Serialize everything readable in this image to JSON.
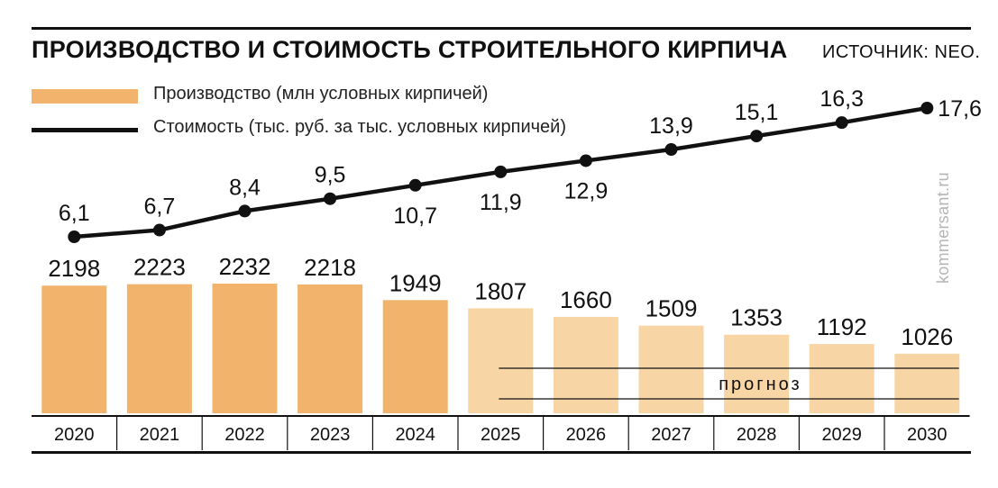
{
  "header": {
    "title": "ПРОИЗВОДСТВО И СТОИМОСТЬ СТРОИТЕЛЬНОГО КИРПИЧА",
    "source": "ИСТОЧНИК: NEO."
  },
  "watermark": "kommersant.ru",
  "forecast_label": "прогноз",
  "legend": {
    "production": "Производство (млн условных кирпичей)",
    "cost": "Стоимость (тыс. руб. за тыс. условных кирпичей)"
  },
  "colors": {
    "actual_bar": "#F2B46C",
    "forecast_bar": "#F8D5A5",
    "line": "#111111"
  },
  "chart_data": {
    "type": "bar",
    "categories": [
      "2020",
      "2021",
      "2022",
      "2023",
      "2024",
      "2025",
      "2026",
      "2027",
      "2028",
      "2029",
      "2030"
    ],
    "forecast_from": "2025",
    "series": [
      {
        "name": "Производство (млн условных кирпичей)",
        "type": "bar",
        "values": [
          2198,
          2223,
          2232,
          2218,
          1949,
          1807,
          1660,
          1509,
          1353,
          1192,
          1026
        ],
        "labels": [
          "2198",
          "2223",
          "2232",
          "2218",
          "1949",
          "1807",
          "1660",
          "1509",
          "1353",
          "1192",
          "1026"
        ]
      },
      {
        "name": "Стоимость (тыс. руб. за тыс. условных кирпичей)",
        "type": "line",
        "values": [
          6.1,
          6.7,
          8.4,
          9.5,
          10.7,
          11.9,
          12.9,
          13.9,
          15.1,
          16.3,
          17.6
        ],
        "labels": [
          "6,1",
          "6,7",
          "8,4",
          "9,5",
          "10,7",
          "11,9",
          "12,9",
          "13,9",
          "15,1",
          "16,3",
          "17,6"
        ]
      }
    ]
  }
}
